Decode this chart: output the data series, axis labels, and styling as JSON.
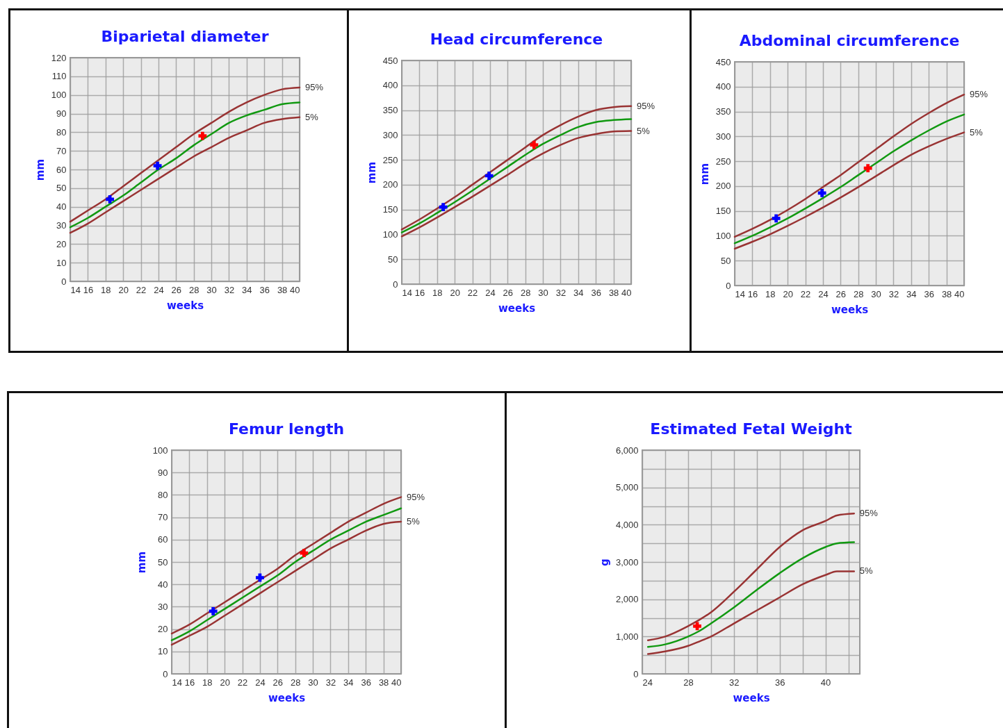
{
  "chart_data": [
    {
      "type": "line",
      "title": "Biparietal diameter",
      "xlabel": "weeks",
      "ylabel": "mm",
      "xlim": [
        14,
        40
      ],
      "ylim": [
        0,
        120
      ],
      "xticks": [
        14,
        16,
        18,
        20,
        22,
        24,
        26,
        28,
        30,
        32,
        34,
        36,
        38,
        40
      ],
      "yticks": [
        0,
        10,
        20,
        30,
        40,
        50,
        60,
        70,
        80,
        90,
        100,
        110,
        120
      ],
      "grid": true,
      "x": [
        14,
        16,
        18,
        20,
        22,
        24,
        26,
        28,
        30,
        32,
        34,
        36,
        38,
        40
      ],
      "series": [
        {
          "name": "95%",
          "color": "#993333",
          "values": [
            32,
            38,
            44,
            51,
            58,
            65,
            72,
            79,
            85,
            91,
            96,
            100,
            103,
            104
          ]
        },
        {
          "color": "#119911",
          "values": [
            29,
            34,
            40,
            46,
            53,
            60,
            66,
            73,
            79,
            85,
            89,
            92,
            95,
            96
          ]
        },
        {
          "name": "5%",
          "color": "#993333",
          "values": [
            26,
            31,
            37,
            43,
            49,
            55,
            61,
            67,
            72,
            77,
            81,
            85,
            87,
            88
          ]
        },
        {
          "type": "scatter",
          "marker": "cross",
          "color": "#0000ff",
          "x": [
            18.5,
            23.9
          ],
          "values": [
            44,
            62
          ]
        },
        {
          "type": "scatter",
          "marker": "cross",
          "color": "#ff0000",
          "x": [
            29
          ],
          "values": [
            78
          ]
        }
      ]
    },
    {
      "type": "line",
      "title": "Head circumference",
      "xlabel": "weeks",
      "ylabel": "mm",
      "xlim": [
        14,
        40
      ],
      "ylim": [
        0,
        450
      ],
      "xticks": [
        14,
        16,
        18,
        20,
        22,
        24,
        26,
        28,
        30,
        32,
        34,
        36,
        38,
        40
      ],
      "yticks": [
        0,
        50,
        100,
        150,
        200,
        250,
        300,
        350,
        400,
        450
      ],
      "grid": true,
      "x": [
        14,
        16,
        18,
        20,
        22,
        24,
        26,
        28,
        30,
        32,
        34,
        36,
        38,
        40
      ],
      "series": [
        {
          "name": "95%",
          "color": "#993333",
          "values": [
            110,
            130,
            152,
            175,
            200,
            225,
            250,
            275,
            300,
            320,
            337,
            350,
            356,
            358
          ]
        },
        {
          "color": "#119911",
          "values": [
            104,
            122,
            143,
            165,
            188,
            212,
            236,
            260,
            282,
            300,
            316,
            326,
            330,
            332
          ]
        },
        {
          "name": "5%",
          "color": "#993333",
          "values": [
            96,
            114,
            134,
            155,
            176,
            198,
            220,
            243,
            263,
            280,
            294,
            302,
            307,
            308
          ]
        },
        {
          "type": "scatter",
          "marker": "cross",
          "color": "#0000ff",
          "x": [
            18.7,
            23.9
          ],
          "values": [
            155,
            218
          ]
        },
        {
          "type": "scatter",
          "marker": "cross",
          "color": "#ff0000",
          "x": [
            29
          ],
          "values": [
            280
          ]
        }
      ]
    },
    {
      "type": "line",
      "title": "Abdominal circumference",
      "xlabel": "weeks",
      "ylabel": "mm",
      "xlim": [
        14,
        40
      ],
      "ylim": [
        0,
        450
      ],
      "xticks": [
        14,
        16,
        18,
        20,
        22,
        24,
        26,
        28,
        30,
        32,
        34,
        36,
        38,
        40
      ],
      "yticks": [
        0,
        50,
        100,
        150,
        200,
        250,
        300,
        350,
        400,
        450
      ],
      "grid": true,
      "x": [
        14,
        16,
        18,
        20,
        22,
        24,
        26,
        28,
        30,
        32,
        34,
        36,
        38,
        40
      ],
      "series": [
        {
          "name": "95%",
          "color": "#993333",
          "values": [
            98,
            114,
            132,
            152,
            174,
            198,
            222,
            248,
            274,
            300,
            325,
            347,
            367,
            384
          ]
        },
        {
          "color": "#119911",
          "values": [
            85,
            100,
            117,
            135,
            155,
            176,
            198,
            222,
            246,
            270,
            292,
            312,
            330,
            344
          ]
        },
        {
          "name": "5%",
          "color": "#993333",
          "values": [
            74,
            88,
            103,
            120,
            138,
            157,
            177,
            198,
            220,
            242,
            263,
            280,
            295,
            308
          ]
        },
        {
          "type": "scatter",
          "marker": "cross",
          "color": "#0000ff",
          "x": [
            18.7,
            23.9
          ],
          "values": [
            135,
            186
          ]
        },
        {
          "type": "scatter",
          "marker": "cross",
          "color": "#ff0000",
          "x": [
            29.1
          ],
          "values": [
            236
          ]
        }
      ]
    },
    {
      "type": "line",
      "title": "Femur length",
      "xlabel": "weeks",
      "ylabel": "mm",
      "xlim": [
        14,
        40
      ],
      "ylim": [
        0,
        100
      ],
      "xticks": [
        14,
        16,
        18,
        20,
        22,
        24,
        26,
        28,
        30,
        32,
        34,
        36,
        38,
        40
      ],
      "yticks": [
        0,
        10,
        20,
        30,
        40,
        50,
        60,
        70,
        80,
        90,
        100
      ],
      "grid": true,
      "x": [
        14,
        16,
        18,
        20,
        22,
        24,
        26,
        28,
        30,
        32,
        34,
        36,
        38,
        40
      ],
      "series": [
        {
          "name": "95%",
          "color": "#993333",
          "values": [
            18,
            22,
            27,
            32,
            37,
            42,
            47,
            53,
            58,
            63,
            68,
            72,
            76,
            79
          ]
        },
        {
          "color": "#119911",
          "values": [
            15,
            19,
            24,
            29,
            34,
            39,
            44,
            50,
            55,
            60,
            64,
            68,
            71,
            74
          ]
        },
        {
          "name": "5%",
          "color": "#993333",
          "values": [
            13,
            17,
            21,
            26,
            31,
            36,
            41,
            46,
            51,
            56,
            60,
            64,
            67,
            68
          ]
        },
        {
          "type": "scatter",
          "marker": "cross",
          "color": "#0000ff",
          "x": [
            18.7,
            24
          ],
          "values": [
            28,
            43
          ]
        },
        {
          "type": "scatter",
          "marker": "cross",
          "color": "#ff0000",
          "x": [
            29
          ],
          "values": [
            54
          ]
        }
      ]
    },
    {
      "type": "line",
      "title": "Estimated Fetal Weight",
      "xlabel": "weeks",
      "ylabel": "g",
      "xlim": [
        24,
        43
      ],
      "ylim": [
        0,
        6000
      ],
      "xticks": [
        24,
        {
          "value": 26,
          "label": null
        },
        28,
        {
          "value": 30,
          "label": null
        },
        32,
        {
          "value": 34,
          "label": null
        },
        36,
        {
          "value": 38,
          "label": null
        },
        40,
        {
          "value": 42,
          "label": null
        }
      ],
      "yticks": [
        {
          "value": 0,
          "label": "0"
        },
        {
          "value": 500,
          "label": null
        },
        {
          "value": 1000,
          "label": "1,000"
        },
        {
          "value": 1500,
          "label": null
        },
        {
          "value": 2000,
          "label": "2,000"
        },
        {
          "value": 2500,
          "label": null
        },
        {
          "value": 3000,
          "label": "3,000"
        },
        {
          "value": 3500,
          "label": null
        },
        {
          "value": 4000,
          "label": "4,000"
        },
        {
          "value": 4500,
          "label": null
        },
        {
          "value": 5000,
          "label": "5,000"
        },
        {
          "value": 5500,
          "label": null
        },
        {
          "value": 6000,
          "label": "6,000"
        }
      ],
      "grid": true,
      "x": [
        24.5,
        26,
        28,
        29,
        30,
        32,
        34,
        36,
        38,
        40,
        41,
        42.5
      ],
      "series": [
        {
          "name": "95%",
          "color": "#993333",
          "values": [
            900,
            1000,
            1280,
            1450,
            1650,
            2200,
            2800,
            3400,
            3850,
            4100,
            4250,
            4300
          ]
        },
        {
          "color": "#119911",
          "values": [
            720,
            790,
            1000,
            1150,
            1350,
            1780,
            2250,
            2700,
            3100,
            3400,
            3500,
            3530
          ]
        },
        {
          "name": "5%",
          "color": "#993333",
          "values": [
            530,
            600,
            750,
            870,
            1000,
            1350,
            1700,
            2050,
            2400,
            2650,
            2750,
            2750
          ]
        },
        {
          "type": "scatter",
          "marker": "cross",
          "color": "#ff0000",
          "x": [
            28.8
          ],
          "values": [
            1280
          ]
        }
      ]
    }
  ]
}
